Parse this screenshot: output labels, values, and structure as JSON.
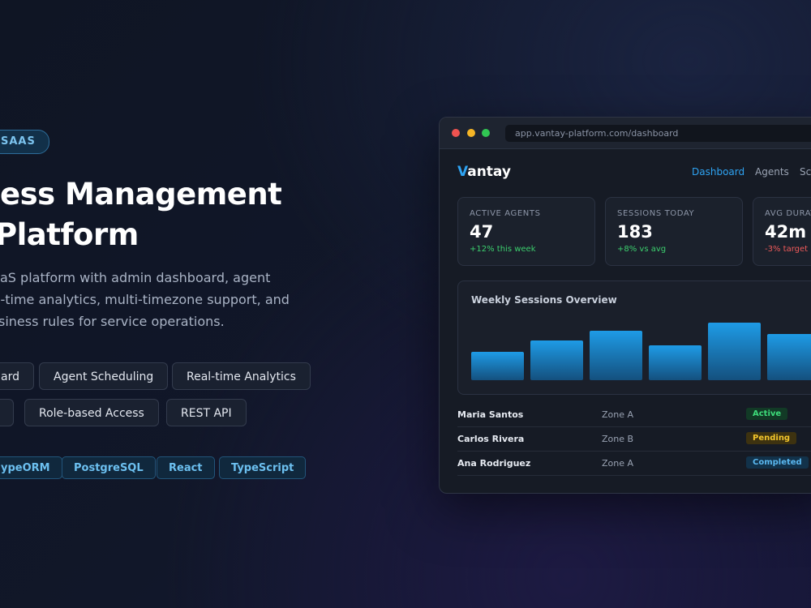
{
  "hero": {
    "badge": "SAAS",
    "title_lines": [
      "ess Management",
      "Platform"
    ],
    "description_lines": [
      "aS platform with admin dashboard, agent",
      "l-time analytics, multi-timezone support, and",
      "siness rules for service operations."
    ],
    "features": [
      [
        "ard",
        "Agent Scheduling",
        "Real-time Analytics"
      ],
      [
        "Role-based Access",
        "REST API"
      ]
    ],
    "tech": [
      "ypeORM",
      "PostgreSQL",
      "React",
      "TypeScript"
    ]
  },
  "dashboard": {
    "url": "app.vantay-platform.com/dashboard",
    "brand_initial": "V",
    "brand_rest": "antay",
    "nav": [
      "Dashboard",
      "Agents",
      "Sc"
    ],
    "stats": [
      {
        "label": "ACTIVE AGENTS",
        "value": 47,
        "delta": "+12% this week",
        "trend": "up"
      },
      {
        "label": "SESSIONS TODAY",
        "value": 183,
        "delta": "+8% vs avg",
        "trend": "up"
      },
      {
        "label": "AVG DURAT",
        "value": "42m",
        "delta": "-3% target",
        "trend": "down"
      }
    ],
    "chart": {
      "type": "bar",
      "title": "Weekly Sessions Overview",
      "values": [
        35,
        49,
        61,
        43,
        71,
        57
      ]
    },
    "table": {
      "rows": [
        [
          "Maria Santos",
          "Zone A",
          "Active"
        ],
        [
          "Carlos Rivera",
          "Zone B",
          "Pending"
        ],
        [
          "Ana Rodriguez",
          "Zone A",
          "Completed"
        ]
      ]
    }
  }
}
